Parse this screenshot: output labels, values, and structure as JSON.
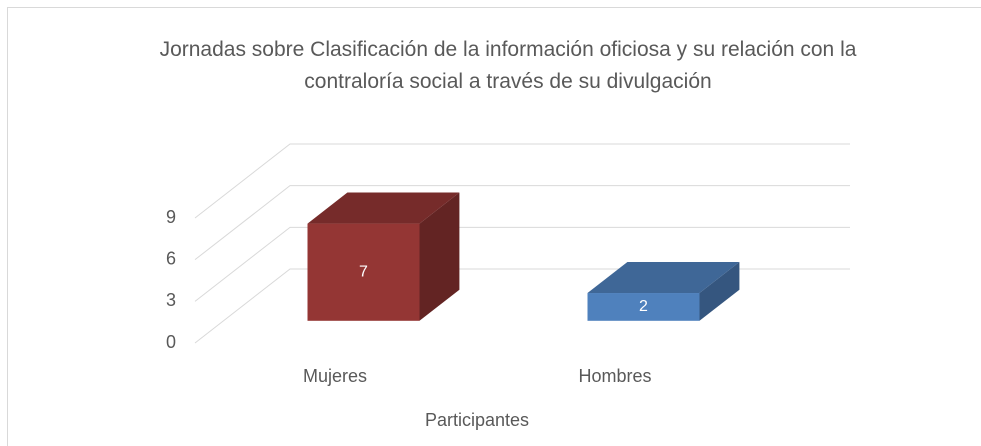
{
  "chart_data": {
    "type": "bar3d",
    "title": "Jornadas sobre Clasificación de la información oficiosa y su relación con la contraloría social a través de su divulgación",
    "x_label": "Participantes",
    "categories": [
      "Mujeres",
      "Hombres"
    ],
    "values": [
      7,
      2
    ],
    "colors": [
      "#943634",
      "#4f81bd"
    ],
    "ylim": [
      0,
      9
    ],
    "yticks": [
      0,
      3,
      6,
      9
    ],
    "grid": true
  }
}
